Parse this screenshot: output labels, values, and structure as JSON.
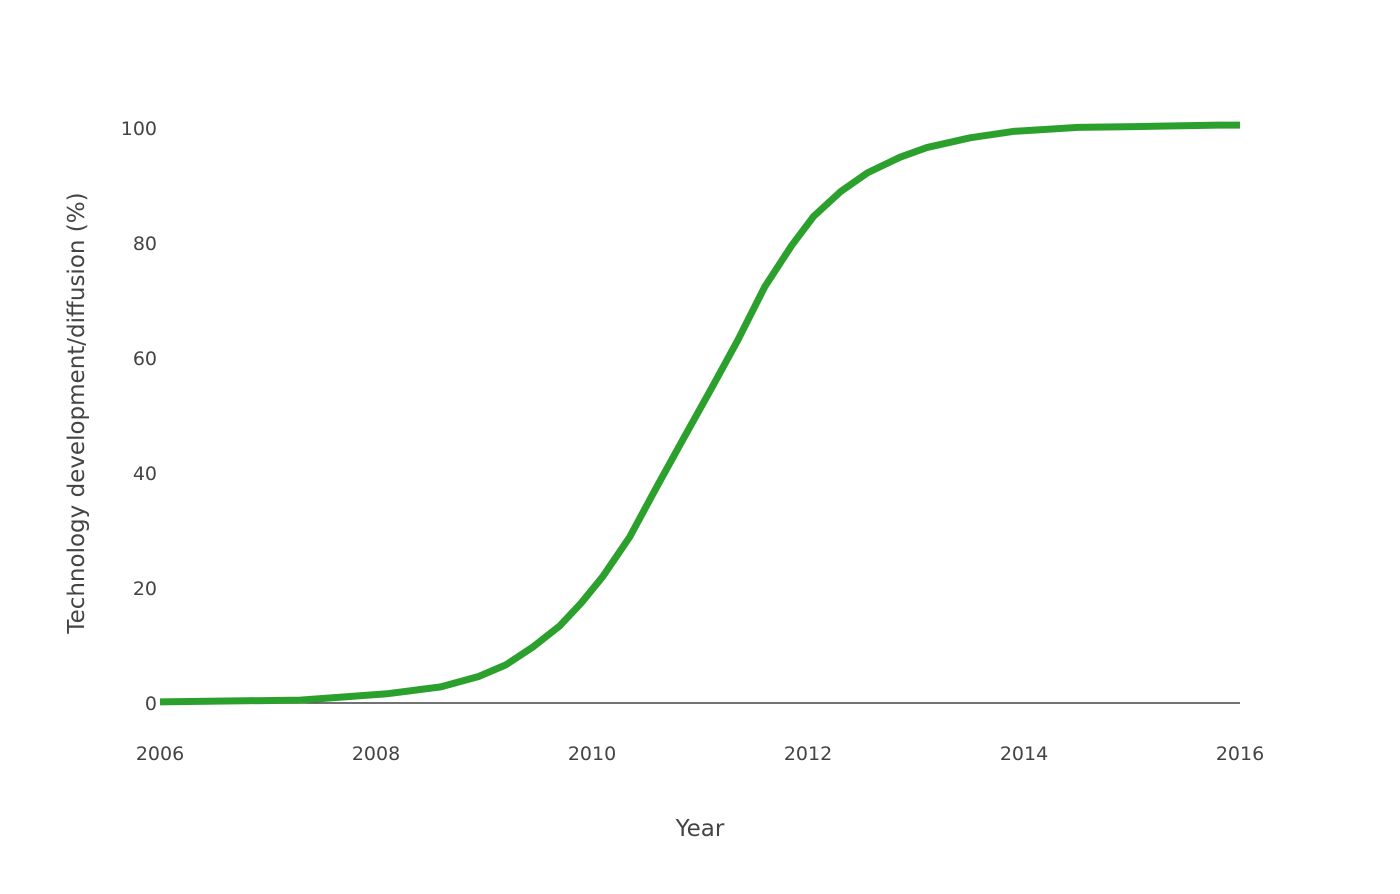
{
  "chart_data": {
    "type": "line",
    "title": "",
    "xlabel": "Year",
    "ylabel": "Technology development/diffusion (%)",
    "xlim": [
      2006,
      2016
    ],
    "ylim": [
      0,
      100
    ],
    "x_ticks": [
      2006,
      2008,
      2010,
      2012,
      2014,
      2016
    ],
    "y_ticks": [
      0,
      20,
      40,
      60,
      80,
      100
    ],
    "grid": false,
    "legend": "none",
    "colors": {
      "series": "#2ca02c",
      "zero_line": "#444444",
      "text": "#444444"
    },
    "series": [
      {
        "x": [
          2006,
          2007.3,
          2008.1,
          2008.6,
          2008.95,
          2009.2,
          2009.45,
          2009.7,
          2009.9,
          2010.1,
          2010.35,
          2010.6,
          2010.85,
          2011.1,
          2011.35,
          2011.6,
          2011.85,
          2012.05,
          2012.3,
          2012.55,
          2012.85,
          2013.1,
          2013.5,
          2013.9,
          2014.5,
          2015.2,
          2015.8,
          2016
        ],
        "y": [
          0.2,
          0.5,
          1.6,
          2.8,
          4.6,
          6.6,
          9.7,
          13.4,
          17.4,
          22.0,
          28.9,
          37.6,
          46.1,
          54.5,
          63.1,
          72.4,
          79.6,
          84.6,
          88.9,
          92.2,
          94.9,
          96.6,
          98.3,
          99.4,
          100.1,
          100.3,
          100.5,
          100.5
        ]
      }
    ]
  }
}
